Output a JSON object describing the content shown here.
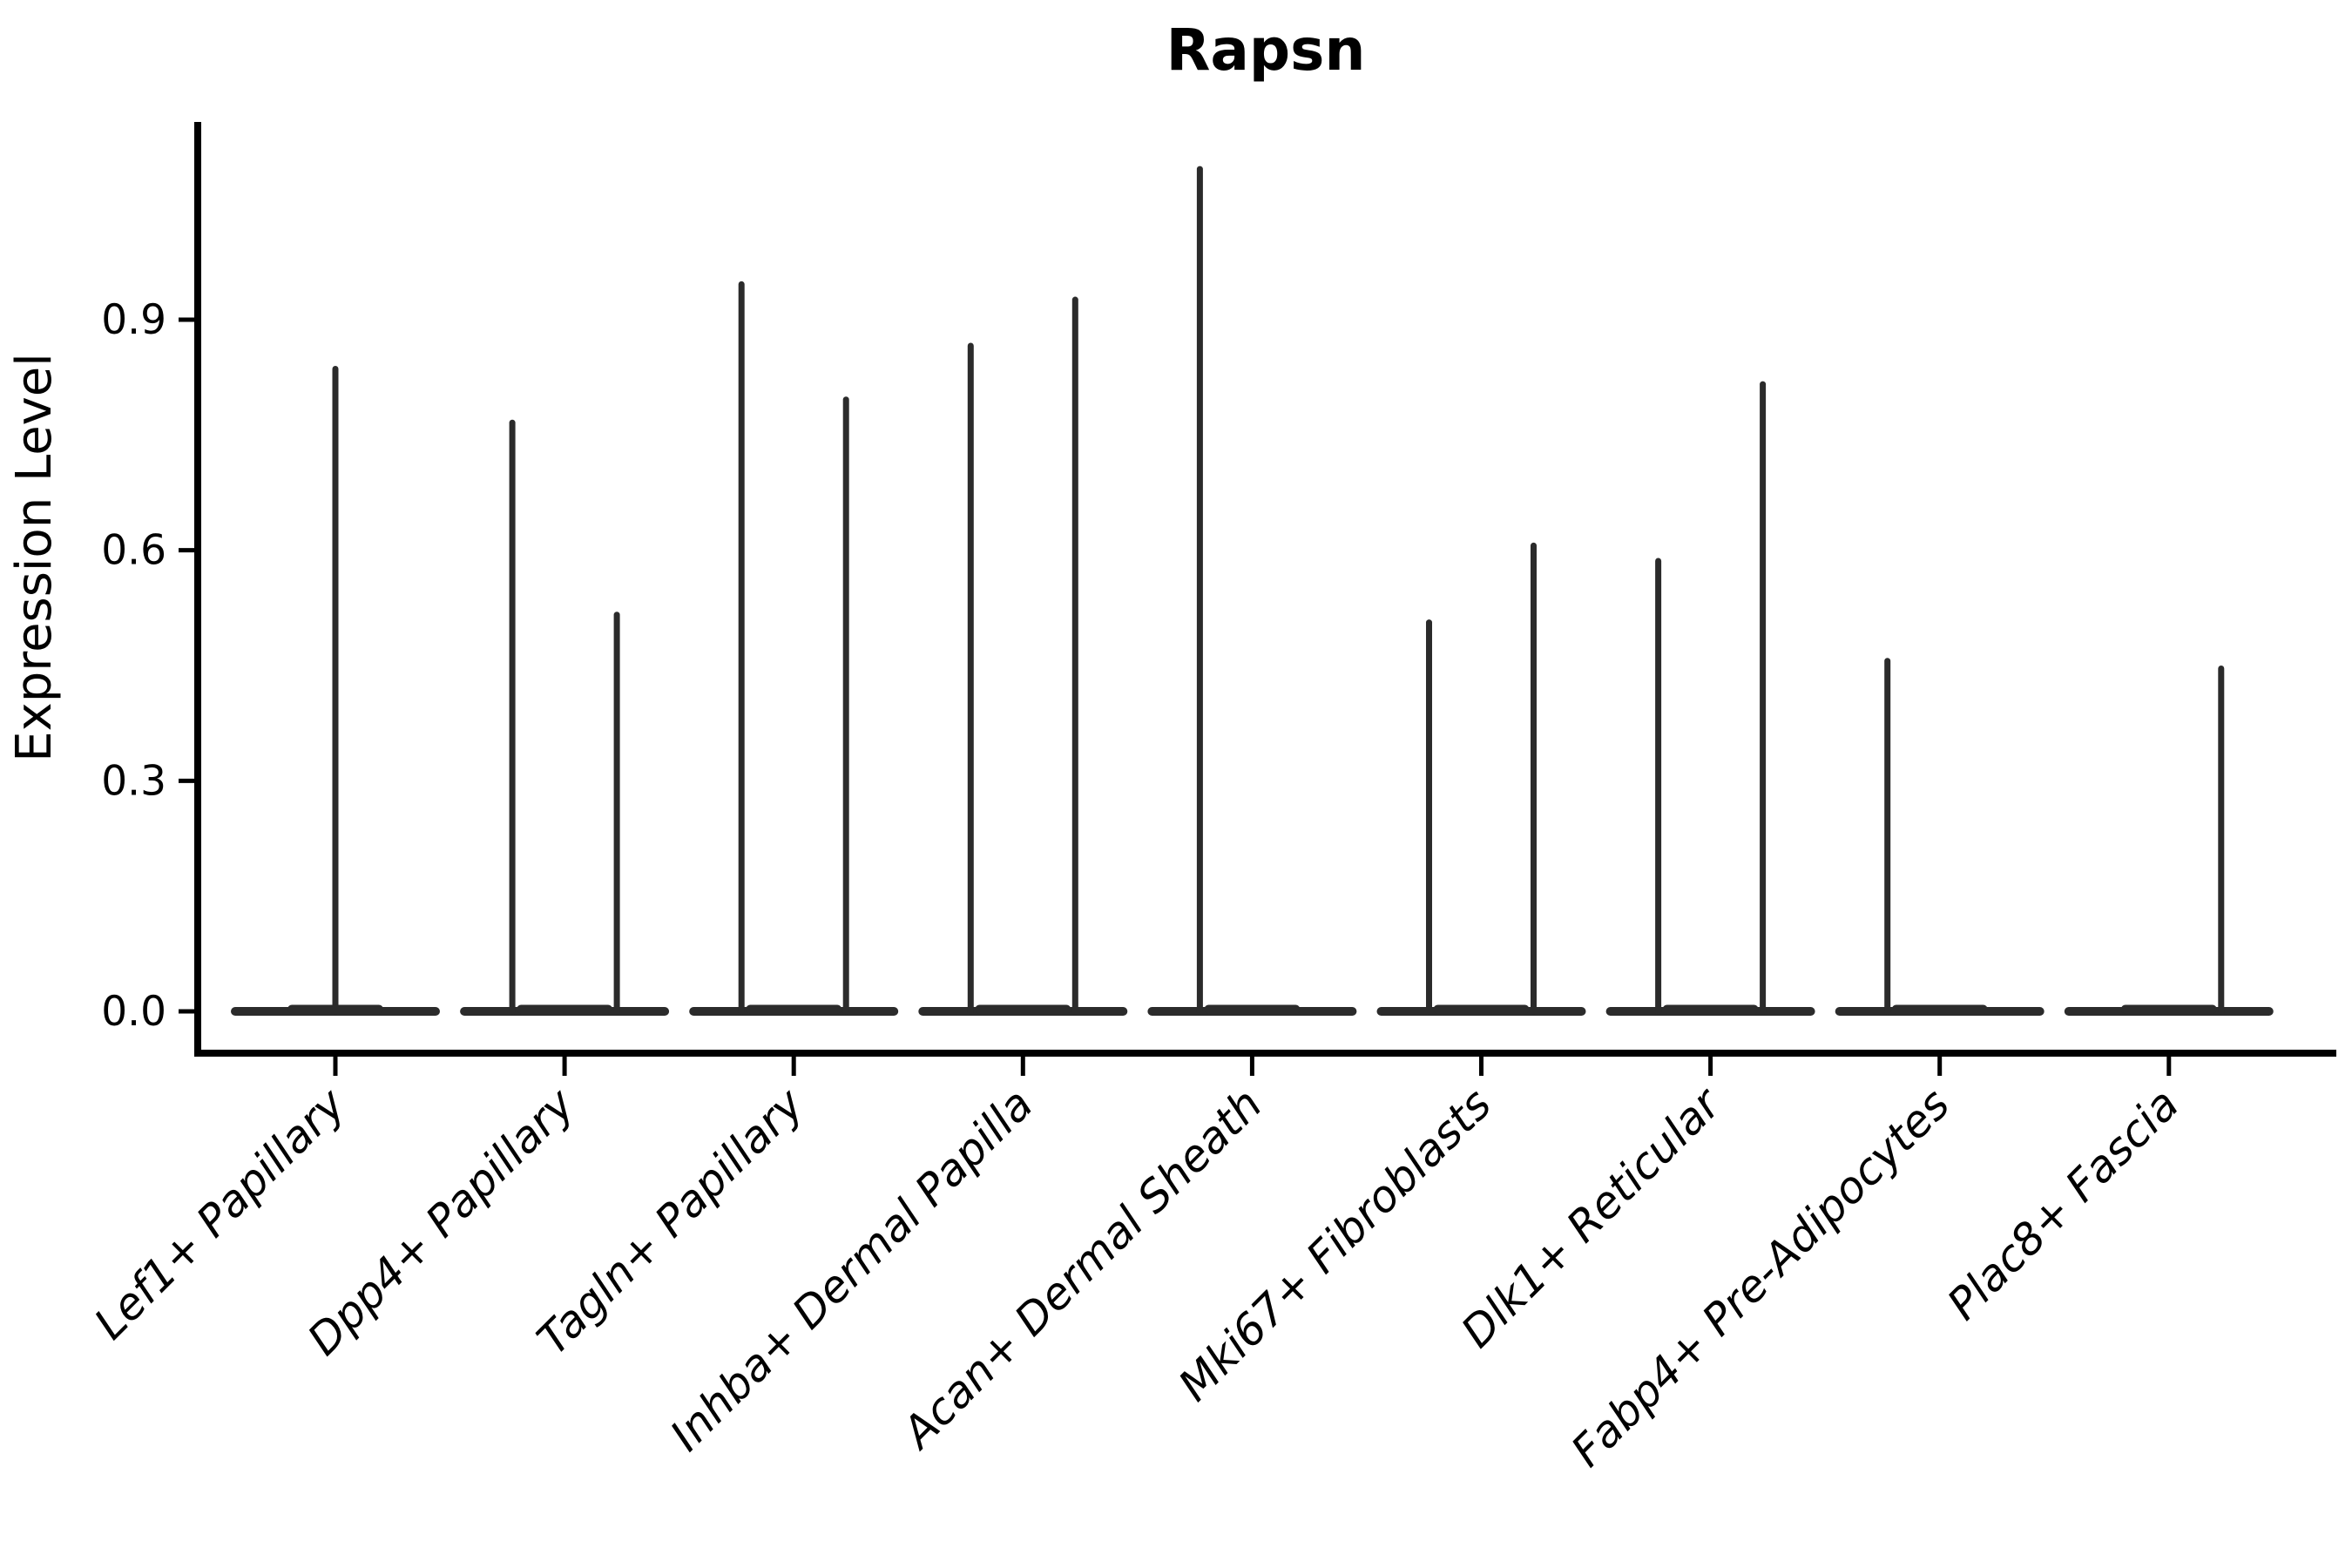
{
  "figure": {
    "background_color": "#ffffff",
    "axis_color": "#000000",
    "text_color": "#000000",
    "violin_color": "#2b2b2b"
  },
  "chart_data": {
    "type": "violin",
    "title": "Rapsn",
    "xlabel": "",
    "ylabel": "Expression Level",
    "grid": false,
    "legend_position": "none",
    "ylim": [
      -0.05,
      1.16
    ],
    "yticks": [
      0.0,
      0.3,
      0.6,
      0.9
    ],
    "ytick_labels": [
      "0.0",
      "0.3",
      "0.6",
      "0.9"
    ],
    "baseline_value": 0.0,
    "categories": [
      "Lef1+ Papillary",
      "Dpp4+ Papillary",
      "Tagln+ Papillary",
      "Inhba+ Dermal Papilla",
      "Acan+ Dermal Sheath",
      "Mki67+ Fibroblasts",
      "Dlk1+ Reticular",
      "Fabp4+ Pre-Adipocytes",
      "Plac8+ Fascia"
    ],
    "violins": [
      {
        "label": "Lef1+ Papillary",
        "spikes": [
          {
            "position": "center",
            "max": 0.84
          }
        ]
      },
      {
        "label": "Dpp4+ Papillary",
        "spikes": [
          {
            "position": "left",
            "max": 0.77
          },
          {
            "position": "right",
            "max": 0.52
          }
        ]
      },
      {
        "label": "Tagln+ Papillary",
        "spikes": [
          {
            "position": "left",
            "max": 0.95
          },
          {
            "position": "right",
            "max": 0.8
          }
        ]
      },
      {
        "label": "Inhba+ Dermal Papilla",
        "spikes": [
          {
            "position": "left",
            "max": 0.87
          },
          {
            "position": "right",
            "max": 0.93
          }
        ]
      },
      {
        "label": "Acan+ Dermal Sheath",
        "spikes": [
          {
            "position": "left",
            "max": 1.1
          }
        ]
      },
      {
        "label": "Mki67+ Fibroblasts",
        "spikes": [
          {
            "position": "left",
            "max": 0.51
          },
          {
            "position": "right",
            "max": 0.61
          }
        ]
      },
      {
        "label": "Dlk1+ Reticular",
        "spikes": [
          {
            "position": "left",
            "max": 0.59
          },
          {
            "position": "right",
            "max": 0.82
          }
        ]
      },
      {
        "label": "Fabp4+ Pre-Adipocytes",
        "spikes": [
          {
            "position": "left",
            "max": 0.46
          }
        ]
      },
      {
        "label": "Plac8+ Fascia",
        "spikes": [
          {
            "position": "right",
            "max": 0.45
          }
        ]
      }
    ]
  }
}
